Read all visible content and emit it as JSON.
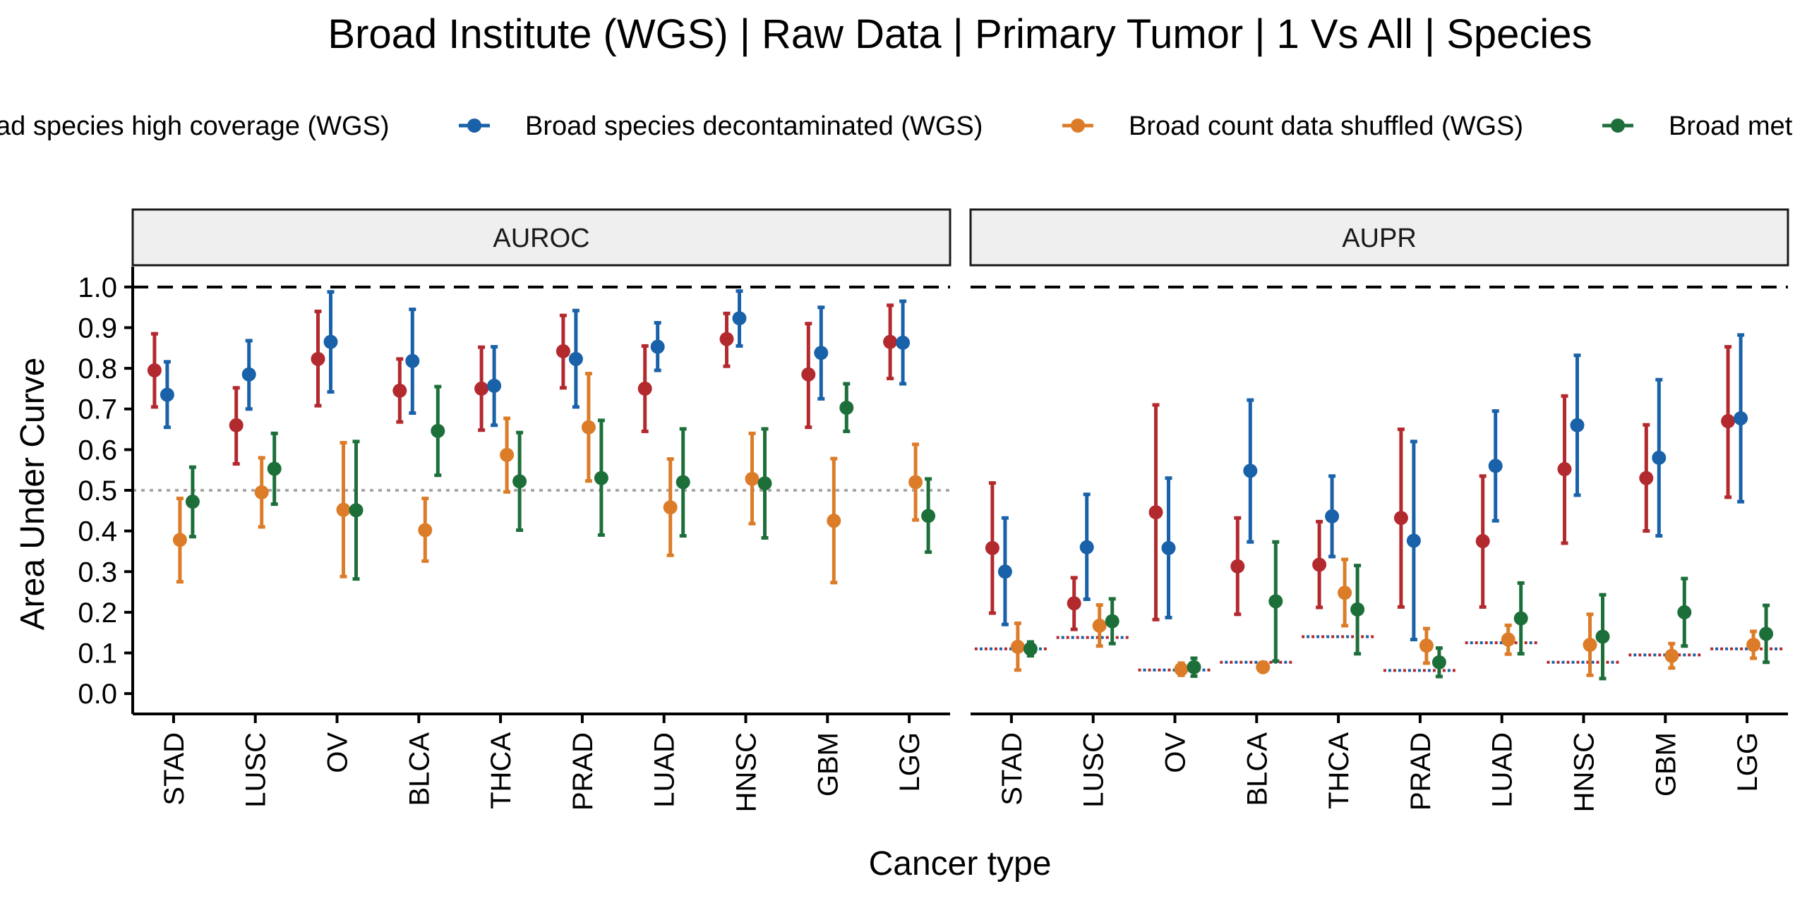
{
  "chart_data": {
    "type": "scatter",
    "title": "Broad Institute (WGS) | Raw Data | Primary Tumor | 1 Vs All | Species",
    "xlabel": "Cancer type",
    "ylabel": "Area Under Curve",
    "ylim": [
      -0.05,
      1.05
    ],
    "yticks": [
      "0.0",
      "0.1",
      "0.2",
      "0.3",
      "0.4",
      "0.5",
      "0.6",
      "0.7",
      "0.8",
      "0.9",
      "1.0"
    ],
    "grid": false,
    "legend_position": "top",
    "categories": [
      "STAD",
      "LUSC",
      "OV",
      "BLCA",
      "THCA",
      "PRAD",
      "LUAD",
      "HNSC",
      "GBM",
      "LGG"
    ],
    "series": [
      {
        "name": "Broad species high coverage (WGS)",
        "legend_label": "ad species high coverage (WGS)",
        "color": "#B2292E"
      },
      {
        "name": "Broad species decontaminated (WGS)",
        "legend_label": "Broad species decontaminated (WGS)",
        "color": "#1961A8"
      },
      {
        "name": "Broad count data shuffled (WGS)",
        "legend_label": "Broad count data shuffled (WGS)",
        "color": "#DC7C28"
      },
      {
        "name": "Broad metadata shuffled (WGS)",
        "legend_label": "Broad met",
        "color": "#1D6F3A"
      }
    ],
    "reference_lines": {
      "perfect": 1.0,
      "auroc_null": 0.5
    },
    "panels": [
      {
        "name": "AUROC",
        "values": [
          [
            [
              0.795,
              0.705,
              0.885
            ],
            [
              0.66,
              0.565,
              0.752
            ],
            [
              0.823,
              0.708,
              0.94
            ],
            [
              0.745,
              0.668,
              0.823
            ],
            [
              0.75,
              0.648,
              0.852
            ],
            [
              0.842,
              0.752,
              0.93
            ],
            [
              0.75,
              0.645,
              0.855
            ],
            [
              0.872,
              0.805,
              0.935
            ],
            [
              0.785,
              0.655,
              0.91
            ],
            [
              0.865,
              0.775,
              0.955
            ]
          ],
          [
            [
              0.735,
              0.655,
              0.816
            ],
            [
              0.785,
              0.7,
              0.868
            ],
            [
              0.865,
              0.742,
              0.988
            ],
            [
              0.818,
              0.69,
              0.945
            ],
            [
              0.757,
              0.66,
              0.853
            ],
            [
              0.823,
              0.705,
              0.942
            ],
            [
              0.853,
              0.795,
              0.912
            ],
            [
              0.923,
              0.855,
              0.99
            ],
            [
              0.838,
              0.725,
              0.95
            ],
            [
              0.863,
              0.762,
              0.965
            ]
          ],
          [
            [
              0.378,
              0.275,
              0.48
            ],
            [
              0.495,
              0.41,
              0.58
            ],
            [
              0.452,
              0.288,
              0.617
            ],
            [
              0.402,
              0.326,
              0.48
            ],
            [
              0.587,
              0.496,
              0.677
            ],
            [
              0.655,
              0.523,
              0.787
            ],
            [
              0.458,
              0.34,
              0.577
            ],
            [
              0.528,
              0.418,
              0.64
            ],
            [
              0.425,
              0.273,
              0.578
            ],
            [
              0.52,
              0.427,
              0.613
            ]
          ],
          [
            [
              0.472,
              0.386,
              0.557
            ],
            [
              0.553,
              0.466,
              0.64
            ],
            [
              0.451,
              0.282,
              0.62
            ],
            [
              0.646,
              0.537,
              0.755
            ],
            [
              0.522,
              0.402,
              0.642
            ],
            [
              0.53,
              0.39,
              0.672
            ],
            [
              0.52,
              0.388,
              0.651
            ],
            [
              0.517,
              0.383,
              0.651
            ],
            [
              0.703,
              0.645,
              0.762
            ],
            [
              0.437,
              0.348,
              0.528
            ]
          ]
        ]
      },
      {
        "name": "AUPR",
        "values": [
          [
            [
              0.358,
              0.198,
              0.518
            ],
            [
              0.222,
              0.158,
              0.285
            ],
            [
              0.446,
              0.182,
              0.71
            ],
            [
              0.313,
              0.195,
              0.432
            ],
            [
              0.317,
              0.212,
              0.423
            ],
            [
              0.432,
              0.213,
              0.65
            ],
            [
              0.375,
              0.213,
              0.535
            ],
            [
              0.552,
              0.37,
              0.732
            ],
            [
              0.53,
              0.4,
              0.661
            ],
            [
              0.67,
              0.483,
              0.853
            ]
          ],
          [
            [
              0.3,
              0.17,
              0.432
            ],
            [
              0.36,
              0.232,
              0.49
            ],
            [
              0.358,
              0.187,
              0.53
            ],
            [
              0.548,
              0.373,
              0.722
            ],
            [
              0.436,
              0.337,
              0.535
            ],
            [
              0.376,
              0.133,
              0.62
            ],
            [
              0.56,
              0.425,
              0.695
            ],
            [
              0.66,
              0.488,
              0.832
            ],
            [
              0.58,
              0.388,
              0.772
            ],
            [
              0.677,
              0.472,
              0.882
            ]
          ],
          [
            [
              0.115,
              0.058,
              0.173
            ],
            [
              0.167,
              0.117,
              0.218
            ],
            [
              0.06,
              0.045,
              0.075
            ],
            [
              0.065,
              0.057,
              0.073
            ],
            [
              0.248,
              0.167,
              0.33
            ],
            [
              0.118,
              0.075,
              0.16
            ],
            [
              0.133,
              0.097,
              0.168
            ],
            [
              0.12,
              0.045,
              0.195
            ],
            [
              0.093,
              0.063,
              0.123
            ],
            [
              0.12,
              0.087,
              0.153
            ]
          ],
          [
            [
              0.11,
              0.093,
              0.127
            ],
            [
              0.178,
              0.123,
              0.233
            ],
            [
              0.065,
              0.043,
              0.087
            ],
            [
              0.227,
              0.08,
              0.373
            ],
            [
              0.207,
              0.098,
              0.315
            ],
            [
              0.077,
              0.042,
              0.112
            ],
            [
              0.185,
              0.098,
              0.272
            ],
            [
              0.14,
              0.037,
              0.243
            ],
            [
              0.2,
              0.117,
              0.283
            ],
            [
              0.147,
              0.077,
              0.217
            ]
          ]
        ],
        "baselines": [
          0.11,
          0.138,
          0.058,
          0.077,
          0.14,
          0.057,
          0.125,
          0.077,
          0.095,
          0.11
        ]
      }
    ]
  }
}
